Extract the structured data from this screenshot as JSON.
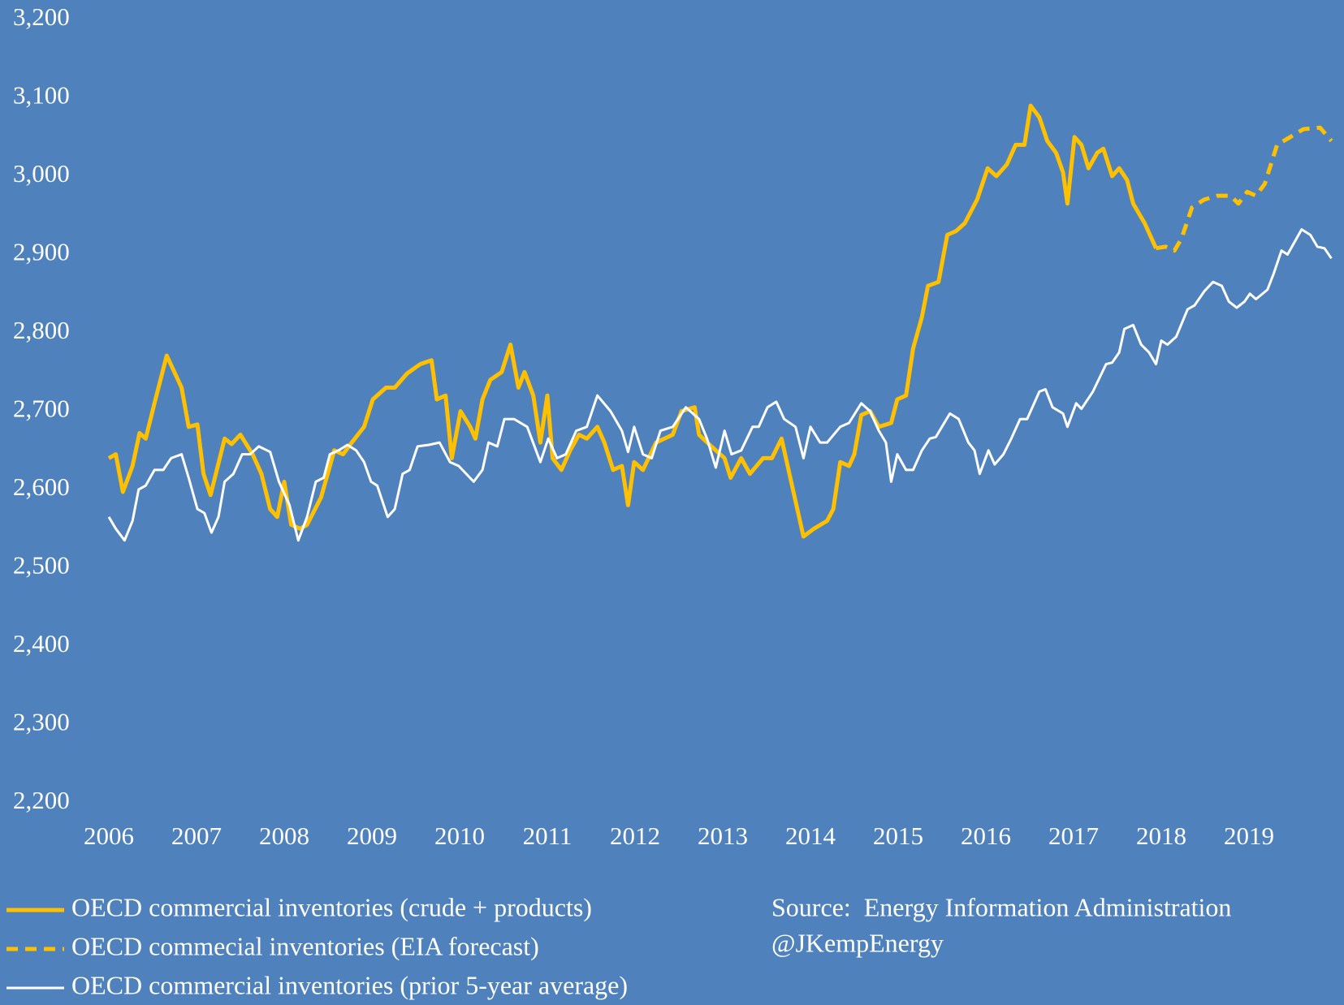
{
  "chart_data": {
    "type": "line",
    "xlim": [
      2006,
      2020
    ],
    "xticks": [
      2006,
      2007,
      2008,
      2009,
      2010,
      2011,
      2012,
      2013,
      2014,
      2015,
      2016,
      2017,
      2018,
      2019
    ],
    "ylim": [
      2200,
      3200
    ],
    "yticks": [
      {
        "value": 2200,
        "label": "2,200"
      },
      {
        "value": 2300,
        "label": "2,300"
      },
      {
        "value": 2400,
        "label": "2,400"
      },
      {
        "value": 2500,
        "label": "2,500"
      },
      {
        "value": 2600,
        "label": "2,600"
      },
      {
        "value": 2700,
        "label": "2,700"
      },
      {
        "value": 2800,
        "label": "2,800"
      },
      {
        "value": 2900,
        "label": "2,900"
      },
      {
        "value": 3000,
        "label": "3,000"
      },
      {
        "value": 3100,
        "label": "3,100"
      },
      {
        "value": 3200,
        "label": "3,200"
      }
    ],
    "grid": false,
    "source": "Source:  Energy Information Administration",
    "credit": "@JKempEnergy",
    "series": [
      {
        "name": "OECD commercial inventories (crude + products)",
        "color": "#ffc000",
        "dash": false,
        "x": [
          2006.0,
          2006.08,
          2006.16,
          2006.27,
          2006.35,
          2006.42,
          2006.52,
          2006.66,
          2006.83,
          2006.91,
          2007.01,
          2007.08,
          2007.16,
          2007.32,
          2007.4,
          2007.5,
          2007.64,
          2007.74,
          2007.84,
          2007.92,
          2008.0,
          2008.08,
          2008.18,
          2008.26,
          2008.42,
          2008.57,
          2008.67,
          2008.77,
          2008.91,
          2009.01,
          2009.16,
          2009.26,
          2009.4,
          2009.55,
          2009.68,
          2009.74,
          2009.84,
          2009.91,
          2010.01,
          2010.12,
          2010.18,
          2010.26,
          2010.35,
          2010.48,
          2010.58,
          2010.67,
          2010.74,
          2010.84,
          2010.92,
          2011.0,
          2011.06,
          2011.16,
          2011.26,
          2011.36,
          2011.45,
          2011.57,
          2011.65,
          2011.75,
          2011.85,
          2011.92,
          2011.99,
          2012.09,
          2012.24,
          2012.43,
          2012.53,
          2012.68,
          2012.73,
          2012.87,
          2013.02,
          2013.09,
          2013.21,
          2013.31,
          2013.46,
          2013.56,
          2013.67,
          2013.8,
          2013.92,
          2014.04,
          2014.19,
          2014.26,
          2014.34,
          2014.44,
          2014.5,
          2014.58,
          2014.68,
          2014.78,
          2014.92,
          2014.99,
          2015.09,
          2015.17,
          2015.27,
          2015.34,
          2015.46,
          2015.56,
          2015.66,
          2015.76,
          2015.9,
          2016.02,
          2016.12,
          2016.24,
          2016.34,
          2016.44,
          2016.51,
          2016.61,
          2016.7,
          2016.8,
          2016.88,
          2016.93,
          2017.01,
          2017.09,
          2017.17,
          2017.27,
          2017.34,
          2017.44,
          2017.52,
          2017.61,
          2017.68,
          2017.81,
          2017.94
        ],
        "values": [
          2640,
          2645,
          2597,
          2630,
          2672,
          2665,
          2710,
          2771,
          2730,
          2680,
          2683,
          2620,
          2593,
          2665,
          2658,
          2670,
          2645,
          2620,
          2575,
          2565,
          2610,
          2555,
          2550,
          2555,
          2590,
          2650,
          2645,
          2660,
          2680,
          2715,
          2730,
          2730,
          2748,
          2760,
          2765,
          2715,
          2720,
          2640,
          2700,
          2680,
          2665,
          2715,
          2740,
          2750,
          2785,
          2730,
          2750,
          2720,
          2660,
          2720,
          2640,
          2625,
          2650,
          2670,
          2665,
          2680,
          2660,
          2625,
          2630,
          2580,
          2635,
          2625,
          2660,
          2670,
          2700,
          2705,
          2670,
          2655,
          2640,
          2615,
          2640,
          2620,
          2640,
          2640,
          2665,
          2600,
          2540,
          2550,
          2560,
          2575,
          2635,
          2630,
          2645,
          2695,
          2700,
          2680,
          2685,
          2715,
          2720,
          2780,
          2820,
          2860,
          2865,
          2925,
          2930,
          2940,
          2970,
          3010,
          3000,
          3015,
          3040,
          3040,
          3090,
          3075,
          3045,
          3030,
          3005,
          2965,
          3050,
          3040,
          3010,
          3030,
          3035,
          3000,
          3010,
          2995,
          2965,
          2940,
          2908
        ]
      },
      {
        "name": "OECD commecial inventories (EIA forecast)",
        "color": "#ffc000",
        "dash": true,
        "x": [
          2017.94,
          2018.05,
          2018.15,
          2018.23,
          2018.35,
          2018.49,
          2018.64,
          2018.79,
          2018.88,
          2018.98,
          2019.08,
          2019.18,
          2019.32,
          2019.47,
          2019.62,
          2019.81,
          2019.94
        ],
        "values": [
          2908,
          2910,
          2905,
          2920,
          2960,
          2970,
          2975,
          2975,
          2965,
          2980,
          2975,
          2990,
          3040,
          3050,
          3060,
          3062,
          3045
        ]
      },
      {
        "name": "OECD commercial inventories (prior 5-year average)",
        "color": "#ffffff",
        "dash": false,
        "x": [
          2006.0,
          2006.08,
          2006.18,
          2006.27,
          2006.34,
          2006.42,
          2006.52,
          2006.62,
          2006.71,
          2006.83,
          2006.91,
          2007.01,
          2007.09,
          2007.17,
          2007.25,
          2007.32,
          2007.42,
          2007.52,
          2007.61,
          2007.71,
          2007.84,
          2007.94,
          2008.06,
          2008.16,
          2008.26,
          2008.36,
          2008.45,
          2008.52,
          2008.62,
          2008.72,
          2008.82,
          2008.91,
          2008.99,
          2009.06,
          2009.18,
          2009.26,
          2009.35,
          2009.43,
          2009.52,
          2009.65,
          2009.77,
          2009.89,
          2009.99,
          2010.16,
          2010.26,
          2010.33,
          2010.43,
          2010.51,
          2010.62,
          2010.77,
          2010.92,
          2011.01,
          2011.11,
          2011.21,
          2011.33,
          2011.45,
          2011.57,
          2011.72,
          2011.85,
          2011.92,
          2011.99,
          2012.09,
          2012.19,
          2012.29,
          2012.43,
          2012.58,
          2012.73,
          2012.82,
          2012.92,
          2013.02,
          2013.1,
          2013.21,
          2013.34,
          2013.41,
          2013.51,
          2013.61,
          2013.7,
          2013.83,
          2013.92,
          2014.0,
          2014.11,
          2014.19,
          2014.34,
          2014.44,
          2014.58,
          2014.68,
          2014.78,
          2014.86,
          2014.92,
          2014.99,
          2015.09,
          2015.17,
          2015.27,
          2015.36,
          2015.43,
          2015.59,
          2015.69,
          2015.8,
          2015.87,
          2015.93,
          2016.03,
          2016.1,
          2016.2,
          2016.29,
          2016.39,
          2016.47,
          2016.61,
          2016.68,
          2016.76,
          2016.88,
          2016.93,
          2017.03,
          2017.09,
          2017.22,
          2017.37,
          2017.44,
          2017.52,
          2017.58,
          2017.68,
          2017.77,
          2017.86,
          2017.94,
          2018.0,
          2018.07,
          2018.17,
          2018.3,
          2018.38,
          2018.49,
          2018.59,
          2018.69,
          2018.77,
          2018.86,
          2018.95,
          2019.01,
          2019.08,
          2019.21,
          2019.28,
          2019.37,
          2019.44,
          2019.6,
          2019.7,
          2019.78,
          2019.86,
          2019.94
        ],
        "values": [
          2565,
          2550,
          2535,
          2560,
          2600,
          2605,
          2625,
          2625,
          2640,
          2645,
          2615,
          2575,
          2570,
          2545,
          2565,
          2610,
          2620,
          2645,
          2645,
          2655,
          2648,
          2610,
          2580,
          2535,
          2565,
          2610,
          2615,
          2645,
          2650,
          2657,
          2650,
          2635,
          2610,
          2605,
          2565,
          2575,
          2620,
          2625,
          2655,
          2657,
          2660,
          2635,
          2630,
          2610,
          2625,
          2660,
          2655,
          2690,
          2690,
          2680,
          2635,
          2665,
          2640,
          2645,
          2675,
          2680,
          2720,
          2700,
          2675,
          2648,
          2680,
          2645,
          2640,
          2675,
          2680,
          2705,
          2690,
          2665,
          2628,
          2675,
          2645,
          2650,
          2680,
          2680,
          2705,
          2712,
          2690,
          2680,
          2640,
          2680,
          2660,
          2660,
          2680,
          2685,
          2710,
          2700,
          2675,
          2660,
          2610,
          2645,
          2625,
          2625,
          2650,
          2665,
          2667,
          2697,
          2690,
          2660,
          2650,
          2620,
          2650,
          2632,
          2645,
          2665,
          2690,
          2690,
          2725,
          2728,
          2705,
          2697,
          2680,
          2710,
          2703,
          2725,
          2760,
          2762,
          2775,
          2805,
          2810,
          2785,
          2775,
          2760,
          2790,
          2785,
          2795,
          2830,
          2835,
          2853,
          2865,
          2860,
          2840,
          2832,
          2840,
          2850,
          2843,
          2855,
          2875,
          2905,
          2900,
          2932,
          2925,
          2910,
          2908,
          2895
        ]
      }
    ]
  }
}
